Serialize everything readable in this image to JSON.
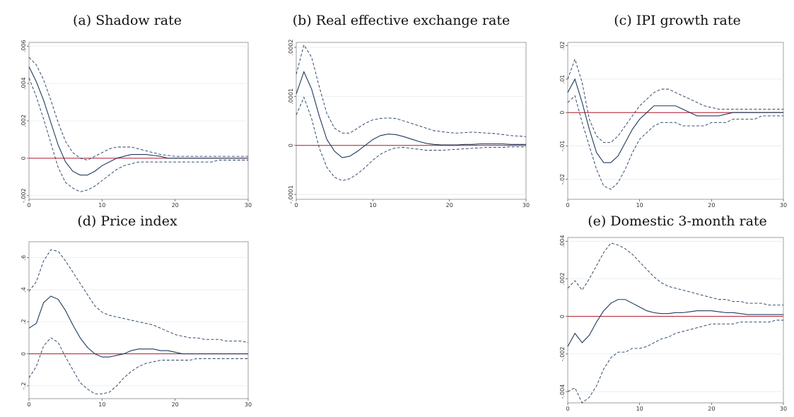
{
  "colors": {
    "ci": "#1f3a5f",
    "irf": "#1f3a5f",
    "zero": "#b2182b",
    "grid": "#e6eaee",
    "frame": "#888888"
  },
  "chart_data": [
    {
      "type": "line",
      "title": "(a) Shadow rate",
      "x": [
        0,
        1,
        2,
        3,
        4,
        5,
        6,
        7,
        8,
        9,
        10,
        11,
        12,
        13,
        14,
        15,
        16,
        17,
        18,
        19,
        20,
        21,
        22,
        23,
        24,
        25,
        26,
        27,
        28,
        29,
        30
      ],
      "ylim": [
        -0.0022,
        0.0062
      ],
      "xlim": [
        0,
        30
      ],
      "yticks": [
        -0.002,
        0,
        0.002,
        0.004,
        0.006
      ],
      "ytick_labels": [
        "-.002",
        "0",
        ".002",
        ".004",
        ".006"
      ],
      "xticks": [
        0,
        10,
        20,
        30
      ],
      "xtick_labels": [
        "0",
        "10",
        "20",
        "30"
      ],
      "series": [
        {
          "style": "dashed",
          "values": [
            0.0054,
            0.005,
            0.0042,
            0.0031,
            0.0019,
            0.0009,
            0.0003,
            0.0,
            -0.0001,
            0.0001,
            0.0003,
            0.0005,
            0.0006,
            0.0006,
            0.0006,
            0.0005,
            0.0004,
            0.0003,
            0.0002,
            0.00015,
            0.0001,
            0.0001,
            0.0001,
            0.0001,
            0.0001,
            0.0001,
            0.0001,
            0.0001,
            0.0001,
            0.0001,
            0.0001
          ]
        },
        {
          "style": "solid",
          "values": [
            0.0049,
            0.0041,
            0.0031,
            0.0019,
            0.0007,
            -0.0002,
            -0.0007,
            -0.0009,
            -0.0009,
            -0.0007,
            -0.0004,
            -0.0002,
            0.0,
            0.0001,
            0.0002,
            0.0002,
            0.0002,
            0.00015,
            0.0001,
            0.0,
            0.0,
            0.0,
            0.0,
            0.0,
            0.0,
            0.0,
            0.0,
            0.0,
            0.0,
            0.0,
            0.0
          ]
        },
        {
          "style": "dashed",
          "values": [
            0.0043,
            0.0033,
            0.0021,
            0.0008,
            -0.0005,
            -0.0013,
            -0.0016,
            -0.0018,
            -0.0017,
            -0.0015,
            -0.0012,
            -0.0009,
            -0.0006,
            -0.0004,
            -0.0003,
            -0.0002,
            -0.0002,
            -0.0002,
            -0.0002,
            -0.0002,
            -0.0002,
            -0.0002,
            -0.0002,
            -0.0002,
            -0.0002,
            -0.0002,
            -0.0001,
            -0.0001,
            -0.0001,
            -0.0001,
            -0.0001
          ]
        }
      ]
    },
    {
      "type": "line",
      "title": "(b) Real effective exchange rate",
      "x": [
        0,
        1,
        2,
        3,
        4,
        5,
        6,
        7,
        8,
        9,
        10,
        11,
        12,
        13,
        14,
        15,
        16,
        17,
        18,
        19,
        20,
        21,
        22,
        23,
        24,
        25,
        26,
        27,
        28,
        29,
        30
      ],
      "ylim": [
        -0.00011,
        0.00021
      ],
      "xlim": [
        0,
        30
      ],
      "yticks": [
        -0.0001,
        0,
        0.0001,
        0.0002
      ],
      "ytick_labels": [
        "-.0001",
        "0",
        ".0001",
        ".0002"
      ],
      "xticks": [
        0,
        10,
        20,
        30
      ],
      "xtick_labels": [
        "0",
        "10",
        "20",
        "30"
      ],
      "series": [
        {
          "style": "dashed",
          "values": [
            0.000145,
            0.000205,
            0.00018,
            0.00012,
            6.5e-05,
            3.5e-05,
            2.5e-05,
            2.5e-05,
            3.5e-05,
            4.5e-05,
            5.2e-05,
            5.5e-05,
            5.6e-05,
            5.5e-05,
            5e-05,
            4.5e-05,
            4e-05,
            3.5e-05,
            3e-05,
            2.8e-05,
            2.6e-05,
            2.5e-05,
            2.6e-05,
            2.7e-05,
            2.6e-05,
            2.5e-05,
            2.4e-05,
            2.2e-05,
            2e-05,
            1.9e-05,
            1.8e-05
          ]
        },
        {
          "style": "solid",
          "values": [
            0.000105,
            0.00015,
            0.000115,
            6e-05,
            1.2e-05,
            -1.2e-05,
            -2.5e-05,
            -2.2e-05,
            -1.2e-05,
            0.0,
            1.2e-05,
            2e-05,
            2.3e-05,
            2.2e-05,
            1.8e-05,
            1.3e-05,
            8e-06,
            4e-06,
            2e-06,
            1e-06,
            1e-06,
            1e-06,
            2e-06,
            2e-06,
            3e-06,
            3e-06,
            3e-06,
            3e-06,
            2e-06,
            2e-06,
            2e-06
          ]
        },
        {
          "style": "dashed",
          "values": [
            6.2e-05,
            9.8e-05,
            5.5e-05,
            -5e-06,
            -4.5e-05,
            -6.5e-05,
            -7.2e-05,
            -6.8e-05,
            -5.8e-05,
            -4.5e-05,
            -3e-05,
            -1.8e-05,
            -1e-05,
            -5e-06,
            -4e-06,
            -6e-06,
            -8e-06,
            -1e-05,
            -1e-05,
            -1e-05,
            -9e-06,
            -8e-06,
            -7e-06,
            -6e-06,
            -5e-06,
            -4e-06,
            -4e-06,
            -4e-06,
            -3e-06,
            -3e-06,
            -3e-06
          ]
        }
      ]
    },
    {
      "type": "line",
      "title": "(c) IPI growth rate",
      "x": [
        0,
        1,
        2,
        3,
        4,
        5,
        6,
        7,
        8,
        9,
        10,
        11,
        12,
        13,
        14,
        15,
        16,
        17,
        18,
        19,
        20,
        21,
        22,
        23,
        24,
        25,
        26,
        27,
        28,
        29,
        30
      ],
      "ylim": [
        -0.026,
        0.021
      ],
      "xlim": [
        0,
        30
      ],
      "yticks": [
        -0.02,
        -0.01,
        0,
        0.01,
        0.02
      ],
      "ytick_labels": [
        "-.02",
        "-.01",
        "0",
        ".01",
        ".02"
      ],
      "xticks": [
        0,
        10,
        20,
        30
      ],
      "xtick_labels": [
        "0",
        "10",
        "20",
        "30"
      ],
      "series": [
        {
          "style": "dashed",
          "values": [
            0.01,
            0.016,
            0.009,
            -0.002,
            -0.007,
            -0.009,
            -0.009,
            -0.007,
            -0.004,
            -0.001,
            0.002,
            0.004,
            0.006,
            0.007,
            0.007,
            0.006,
            0.005,
            0.004,
            0.003,
            0.002,
            0.0015,
            0.001,
            0.001,
            0.001,
            0.001,
            0.001,
            0.001,
            0.001,
            0.001,
            0.001,
            0.001
          ]
        },
        {
          "style": "solid",
          "values": [
            0.006,
            0.01,
            0.003,
            -0.005,
            -0.012,
            -0.015,
            -0.015,
            -0.013,
            -0.009,
            -0.005,
            -0.002,
            0.0,
            0.002,
            0.002,
            0.002,
            0.002,
            0.001,
            0.0,
            -0.001,
            -0.001,
            -0.001,
            -0.001,
            -0.0005,
            0.0,
            0.0,
            0.0,
            0.0,
            0.0,
            0.0,
            0.0,
            0.0
          ]
        },
        {
          "style": "dashed",
          "values": [
            0.003,
            0.005,
            -0.003,
            -0.01,
            -0.017,
            -0.022,
            -0.023,
            -0.021,
            -0.017,
            -0.012,
            -0.008,
            -0.006,
            -0.004,
            -0.003,
            -0.003,
            -0.003,
            -0.004,
            -0.004,
            -0.004,
            -0.004,
            -0.003,
            -0.003,
            -0.003,
            -0.002,
            -0.002,
            -0.002,
            -0.002,
            -0.001,
            -0.001,
            -0.001,
            -0.001
          ]
        }
      ]
    },
    {
      "type": "line",
      "title": "(d) Price index",
      "x": [
        0,
        1,
        2,
        3,
        4,
        5,
        6,
        7,
        8,
        9,
        10,
        11,
        12,
        13,
        14,
        15,
        16,
        17,
        18,
        19,
        20,
        21,
        22,
        23,
        24,
        25,
        26,
        27,
        28,
        29,
        30
      ],
      "ylim": [
        -0.28,
        0.7
      ],
      "xlim": [
        0,
        30
      ],
      "yticks": [
        -0.2,
        0,
        0.2,
        0.4,
        0.6
      ],
      "ytick_labels": [
        "-.2",
        "0",
        ".2",
        ".4",
        ".6"
      ],
      "xticks": [
        0,
        10,
        20,
        30
      ],
      "xtick_labels": [
        "0",
        "10",
        "20",
        "30"
      ],
      "series": [
        {
          "style": "dashed",
          "values": [
            0.39,
            0.45,
            0.58,
            0.65,
            0.64,
            0.58,
            0.51,
            0.44,
            0.37,
            0.3,
            0.26,
            0.24,
            0.23,
            0.22,
            0.21,
            0.2,
            0.19,
            0.18,
            0.16,
            0.14,
            0.12,
            0.11,
            0.1,
            0.1,
            0.09,
            0.09,
            0.09,
            0.08,
            0.08,
            0.08,
            0.07
          ]
        },
        {
          "style": "solid",
          "values": [
            0.16,
            0.19,
            0.32,
            0.36,
            0.34,
            0.27,
            0.18,
            0.1,
            0.04,
            0.0,
            -0.02,
            -0.02,
            -0.01,
            0.0,
            0.02,
            0.03,
            0.03,
            0.03,
            0.02,
            0.02,
            0.01,
            0.0,
            0.0,
            0.0,
            0.0,
            0.0,
            0.0,
            0.0,
            0.0,
            0.0,
            0.0
          ]
        },
        {
          "style": "dashed",
          "values": [
            -0.15,
            -0.08,
            0.05,
            0.1,
            0.07,
            -0.02,
            -0.1,
            -0.18,
            -0.22,
            -0.25,
            -0.25,
            -0.24,
            -0.2,
            -0.15,
            -0.11,
            -0.08,
            -0.06,
            -0.05,
            -0.04,
            -0.04,
            -0.04,
            -0.04,
            -0.04,
            -0.03,
            -0.03,
            -0.03,
            -0.03,
            -0.03,
            -0.03,
            -0.03,
            -0.03
          ]
        }
      ]
    },
    {
      "type": "line",
      "title": "(e) Domestic 3-month rate",
      "x": [
        0,
        1,
        2,
        3,
        4,
        5,
        6,
        7,
        8,
        9,
        10,
        11,
        12,
        13,
        14,
        15,
        16,
        17,
        18,
        19,
        20,
        21,
        22,
        23,
        24,
        25,
        26,
        27,
        28,
        29,
        30
      ],
      "ylim": [
        -0.0046,
        0.0042
      ],
      "xlim": [
        0,
        30
      ],
      "yticks": [
        -0.004,
        -0.002,
        0,
        0.002,
        0.004
      ],
      "ytick_labels": [
        "-.004",
        "-.002",
        "0",
        ".002",
        ".004"
      ],
      "xticks": [
        0,
        10,
        20,
        30
      ],
      "xtick_labels": [
        "0",
        "10",
        "20",
        "30"
      ],
      "series": [
        {
          "style": "dashed",
          "values": [
            0.0015,
            0.0019,
            0.0014,
            0.002,
            0.0027,
            0.0034,
            0.0039,
            0.0038,
            0.0036,
            0.0033,
            0.0029,
            0.0025,
            0.0021,
            0.0018,
            0.0016,
            0.0015,
            0.0014,
            0.0013,
            0.0012,
            0.0011,
            0.001,
            0.0009,
            0.0009,
            0.0008,
            0.0008,
            0.0007,
            0.0007,
            0.0007,
            0.0006,
            0.0006,
            0.0006
          ]
        },
        {
          "style": "solid",
          "values": [
            -0.0016,
            -0.0009,
            -0.0014,
            -0.001,
            -0.0003,
            0.0003,
            0.0007,
            0.0009,
            0.0009,
            0.0007,
            0.0005,
            0.0003,
            0.0002,
            0.00015,
            0.00015,
            0.0002,
            0.0002,
            0.00025,
            0.0003,
            0.0003,
            0.0003,
            0.00025,
            0.0002,
            0.0002,
            0.00015,
            0.0001,
            0.0001,
            0.0001,
            0.0001,
            0.0001,
            0.0001
          ]
        },
        {
          "style": "dashed",
          "values": [
            -0.004,
            -0.0038,
            -0.0046,
            -0.0043,
            -0.0037,
            -0.0028,
            -0.0022,
            -0.0019,
            -0.0019,
            -0.0017,
            -0.0017,
            -0.0016,
            -0.0014,
            -0.0012,
            -0.0011,
            -0.0009,
            -0.0008,
            -0.0007,
            -0.0006,
            -0.0005,
            -0.0004,
            -0.0004,
            -0.0004,
            -0.0004,
            -0.0003,
            -0.0003,
            -0.0003,
            -0.0003,
            -0.0003,
            -0.0002,
            -0.0002
          ]
        }
      ]
    }
  ]
}
